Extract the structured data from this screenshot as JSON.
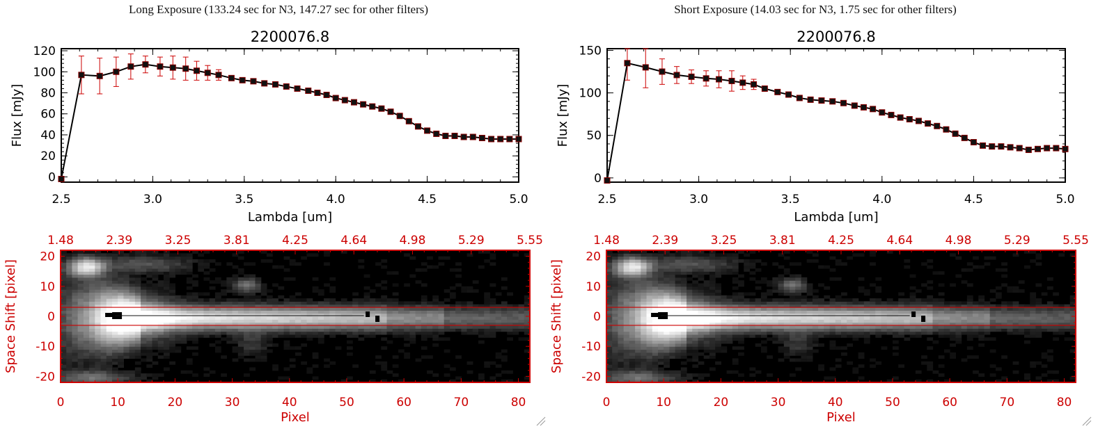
{
  "panels": [
    {
      "header": "Long Exposure (133.24 sec for N3, 147.27 sec for other filters)",
      "spectrum": {
        "title": "2200076.8",
        "xlabel": "Lambda [um]",
        "ylabel": "Flux [mJy]",
        "xlim": [
          2.5,
          5.0
        ],
        "ylim": [
          -5,
          122
        ],
        "xticks": [
          "2.5",
          "3.0",
          "3.5",
          "4.0",
          "4.5",
          "5.0"
        ],
        "yticks": [
          "0",
          "20",
          "40",
          "60",
          "80",
          "100",
          "120"
        ]
      },
      "image": {
        "xlabel": "Pixel",
        "ylabel": "Space Shift [pixel]",
        "xticks": [
          "0",
          "10",
          "20",
          "30",
          "40",
          "50",
          "60",
          "70",
          "80"
        ],
        "yticks": [
          "-20",
          "-10",
          "0",
          "10",
          "20"
        ],
        "top_ticks": [
          "1.48",
          "2.39",
          "3.25",
          "3.81",
          "4.25",
          "4.64",
          "4.98",
          "5.29",
          "5.55"
        ]
      }
    },
    {
      "header": "Short Exposure (14.03 sec for N3, 1.75 sec for other filters)",
      "spectrum": {
        "title": "2200076.8",
        "xlabel": "Lambda [um]",
        "ylabel": "Flux [mJy]",
        "xlim": [
          2.5,
          5.0
        ],
        "ylim": [
          -5,
          152
        ],
        "xticks": [
          "2.5",
          "3.0",
          "3.5",
          "4.0",
          "4.5",
          "5.0"
        ],
        "yticks": [
          "0",
          "50",
          "100",
          "150"
        ]
      },
      "image": {
        "xlabel": "Pixel",
        "ylabel": "Space Shift [pixel]",
        "xticks": [
          "0",
          "10",
          "20",
          "30",
          "40",
          "50",
          "60",
          "70",
          "80"
        ],
        "yticks": [
          "-20",
          "-10",
          "0",
          "10",
          "20"
        ],
        "top_ticks": [
          "1.48",
          "2.39",
          "3.25",
          "3.81",
          "4.25",
          "4.64",
          "4.98",
          "5.29",
          "5.55"
        ]
      }
    }
  ],
  "colors": {
    "axis": "#000000",
    "red": "#cc0000",
    "marker": "#111111"
  },
  "chart_data": [
    {
      "type": "line",
      "title": "2200076.8",
      "xlabel": "Lambda [um]",
      "ylabel": "Flux [mJy]",
      "xlim": [
        2.5,
        5.0
      ],
      "ylim": [
        -5,
        122
      ],
      "x": [
        2.5,
        2.61,
        2.71,
        2.8,
        2.88,
        2.96,
        3.04,
        3.11,
        3.18,
        3.24,
        3.3,
        3.36,
        3.43,
        3.49,
        3.55,
        3.61,
        3.67,
        3.73,
        3.79,
        3.85,
        3.9,
        3.95,
        4.0,
        4.05,
        4.1,
        4.15,
        4.2,
        4.25,
        4.3,
        4.35,
        4.4,
        4.45,
        4.5,
        4.55,
        4.6,
        4.65,
        4.7,
        4.75,
        4.8,
        4.85,
        4.9,
        4.95,
        5.0
      ],
      "y": [
        -2,
        97,
        96,
        100,
        105,
        107,
        105,
        104,
        103,
        101,
        99,
        97,
        94,
        92,
        91,
        89,
        88,
        86,
        84,
        82,
        80,
        78,
        75,
        73,
        71,
        69,
        67,
        65,
        62,
        58,
        53,
        48,
        44,
        41,
        39,
        39,
        38,
        38,
        37,
        36,
        36,
        36,
        36
      ],
      "yerr": [
        0,
        18,
        17,
        14,
        12,
        8,
        9,
        11,
        11,
        9,
        7,
        5,
        2,
        2,
        2,
        2,
        2,
        2,
        2,
        2,
        2,
        2,
        2,
        2,
        2,
        2,
        2,
        2,
        2,
        2,
        2,
        2,
        2,
        2,
        2,
        2,
        2,
        2,
        2,
        2,
        2,
        2,
        2
      ]
    },
    {
      "type": "line",
      "title": "2200076.8",
      "xlabel": "Lambda [um]",
      "ylabel": "Flux [mJy]",
      "xlim": [
        2.5,
        5.0
      ],
      "ylim": [
        -5,
        152
      ],
      "x": [
        2.5,
        2.61,
        2.71,
        2.8,
        2.88,
        2.96,
        3.04,
        3.11,
        3.18,
        3.24,
        3.3,
        3.36,
        3.43,
        3.49,
        3.55,
        3.61,
        3.67,
        3.73,
        3.79,
        3.85,
        3.9,
        3.95,
        4.0,
        4.05,
        4.1,
        4.15,
        4.2,
        4.25,
        4.3,
        4.35,
        4.4,
        4.45,
        4.5,
        4.55,
        4.6,
        4.65,
        4.7,
        4.75,
        4.8,
        4.85,
        4.9,
        4.95,
        5.0
      ],
      "y": [
        -3,
        135,
        130,
        125,
        121,
        119,
        117,
        116,
        114,
        112,
        110,
        105,
        101,
        98,
        94,
        92,
        91,
        90,
        88,
        85,
        83,
        81,
        77,
        74,
        71,
        69,
        67,
        64,
        61,
        57,
        52,
        47,
        42,
        38,
        37,
        37,
        36,
        35,
        33,
        34,
        35,
        35,
        34
      ],
      "yerr": [
        0,
        20,
        24,
        15,
        10,
        8,
        9,
        10,
        12,
        8,
        6,
        3,
        2,
        2,
        2,
        2,
        2,
        2,
        2,
        2,
        2,
        2,
        2,
        2,
        2,
        2,
        2,
        2,
        2,
        2,
        2,
        2,
        2,
        2,
        2,
        2,
        2,
        2,
        2,
        2,
        2,
        2,
        2
      ]
    },
    {
      "type": "heatmap",
      "xlabel": "Pixel",
      "ylabel": "Space Shift [pixel]",
      "xlim": [
        0,
        82
      ],
      "ylim": [
        -22,
        22
      ],
      "top_axis_ticks": [
        "1.48",
        "2.39",
        "3.25",
        "3.81",
        "4.25",
        "4.64",
        "4.98",
        "5.29",
        "5.55"
      ],
      "source_center": [
        9.5,
        0
      ],
      "aperture": [
        -3,
        3
      ]
    },
    {
      "type": "heatmap",
      "xlabel": "Pixel",
      "ylabel": "Space Shift [pixel]",
      "xlim": [
        0,
        82
      ],
      "ylim": [
        -22,
        22
      ],
      "top_axis_ticks": [
        "1.48",
        "2.39",
        "3.25",
        "3.81",
        "4.25",
        "4.64",
        "4.98",
        "5.29",
        "5.55"
      ],
      "source_center": [
        9.5,
        0
      ],
      "aperture": [
        -3,
        3
      ]
    }
  ]
}
